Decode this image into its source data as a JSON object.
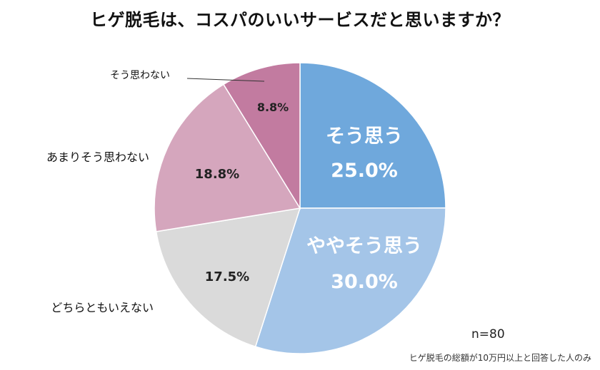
{
  "title": "ヒゲ脱毛は、コスパのいいサービスだと思いますか？",
  "n_label": "n=80",
  "footnote": "ヒゲ脱毛の総額が10万円以上と回答した人のみ",
  "chart_data": {
    "type": "pie",
    "title": "ヒゲ脱毛は、コスパのいいサービスだと思いますか？",
    "slices": [
      {
        "label": "そう思う",
        "value": 25.0,
        "value_label": "25.0%",
        "color": "#6fa8dc",
        "text_color": "#ffffff",
        "label_inside": true
      },
      {
        "label": "ややそう思う",
        "value": 30.0,
        "value_label": "30.0%",
        "color": "#a4c5e8",
        "text_color": "#ffffff",
        "label_inside": true
      },
      {
        "label": "どちらともいえない",
        "value": 17.5,
        "value_label": "17.5%",
        "color": "#dadada",
        "text_color": "#222222",
        "label_inside": false
      },
      {
        "label": "あまりそう思わない",
        "value": 18.8,
        "value_label": "18.8%",
        "color": "#d5a6bd",
        "text_color": "#222222",
        "label_inside": false
      },
      {
        "label": "そう思わない",
        "value": 8.8,
        "value_label": "8.8%",
        "color": "#c27ba0",
        "text_color": "#222222",
        "label_inside": false
      }
    ],
    "start": "12 o'clock",
    "direction": "clockwise",
    "legend": "none"
  }
}
